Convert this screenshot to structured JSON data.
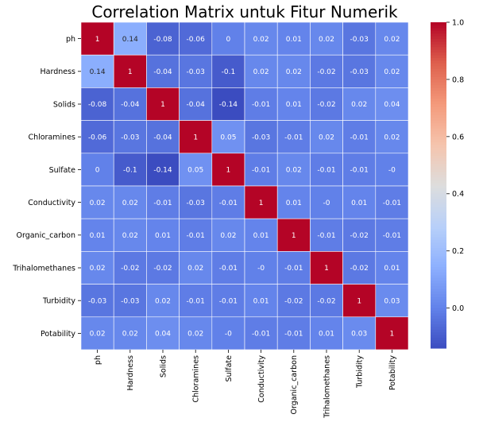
{
  "chart_data": {
    "type": "heatmap",
    "title": "Correlation Matrix untuk Fitur Numerik",
    "xlabel": "",
    "ylabel": "",
    "labels": [
      "ph",
      "Hardness",
      "Solids",
      "Chloramines",
      "Sulfate",
      "Conductivity",
      "Organic_carbon",
      "Trihalomethanes",
      "Turbidity",
      "Potability"
    ],
    "matrix": [
      [
        1,
        0.14,
        -0.08,
        -0.06,
        0,
        0.02,
        0.01,
        0.02,
        -0.03,
        0.02
      ],
      [
        0.14,
        1,
        -0.04,
        -0.03,
        -0.1,
        0.02,
        0.02,
        -0.02,
        -0.03,
        0.02
      ],
      [
        -0.08,
        -0.04,
        1,
        -0.04,
        -0.14,
        -0.01,
        0.01,
        -0.02,
        0.02,
        0.04
      ],
      [
        -0.06,
        -0.03,
        -0.04,
        1,
        0.05,
        -0.03,
        -0.01,
        0.02,
        -0.01,
        0.02
      ],
      [
        0,
        -0.1,
        -0.14,
        0.05,
        1,
        -0.01,
        0.02,
        -0.01,
        -0.01,
        0
      ],
      [
        0.02,
        0.02,
        -0.01,
        -0.03,
        -0.01,
        1,
        0.01,
        0,
        0.01,
        -0.01
      ],
      [
        0.01,
        0.02,
        0.01,
        -0.01,
        0.02,
        0.01,
        1,
        -0.01,
        -0.02,
        -0.01
      ],
      [
        0.02,
        -0.02,
        -0.02,
        0.02,
        -0.01,
        0,
        -0.01,
        1,
        -0.02,
        0.01
      ],
      [
        -0.03,
        -0.03,
        0.02,
        -0.01,
        -0.01,
        0.01,
        -0.02,
        -0.02,
        1,
        0.03
      ],
      [
        0.02,
        0.02,
        0.04,
        0.02,
        0,
        -0.01,
        -0.01,
        0.01,
        0.03,
        1
      ]
    ],
    "cell_text": [
      [
        "1",
        "0.14",
        "-0.08",
        "-0.06",
        "0",
        "0.02",
        "0.01",
        "0.02",
        "-0.03",
        "0.02"
      ],
      [
        "0.14",
        "1",
        "-0.04",
        "-0.03",
        "-0.1",
        "0.02",
        "0.02",
        "-0.02",
        "-0.03",
        "0.02"
      ],
      [
        "-0.08",
        "-0.04",
        "1",
        "-0.04",
        "-0.14",
        "-0.01",
        "0.01",
        "-0.02",
        "0.02",
        "0.04"
      ],
      [
        "-0.06",
        "-0.03",
        "-0.04",
        "1",
        "0.05",
        "-0.03",
        "-0.01",
        "0.02",
        "-0.01",
        "0.02"
      ],
      [
        "0",
        "-0.1",
        "-0.14",
        "0.05",
        "1",
        "-0.01",
        "0.02",
        "-0.01",
        "-0.01",
        "-0"
      ],
      [
        "0.02",
        "0.02",
        "-0.01",
        "-0.03",
        "-0.01",
        "1",
        "0.01",
        "-0",
        "0.01",
        "-0.01"
      ],
      [
        "0.01",
        "0.02",
        "0.01",
        "-0.01",
        "0.02",
        "0.01",
        "1",
        "-0.01",
        "-0.02",
        "-0.01"
      ],
      [
        "0.02",
        "-0.02",
        "-0.02",
        "0.02",
        "-0.01",
        "-0",
        "-0.01",
        "1",
        "-0.02",
        "0.01"
      ],
      [
        "-0.03",
        "-0.03",
        "0.02",
        "-0.01",
        "-0.01",
        "0.01",
        "-0.02",
        "-0.02",
        "1",
        "0.03"
      ],
      [
        "0.02",
        "0.02",
        "0.04",
        "0.02",
        "-0",
        "-0.01",
        "-0.01",
        "0.01",
        "0.03",
        "1"
      ]
    ],
    "colormap": "coolwarm",
    "vmin": -0.14,
    "vmax": 1.0,
    "colorbar": {
      "ticks": [
        0.0,
        0.2,
        0.4,
        0.6,
        0.8,
        1.0
      ],
      "tick_labels": [
        "0.0",
        "0.2",
        "0.4",
        "0.6",
        "0.8",
        "1.0"
      ]
    },
    "grid": false,
    "legend": "colorbar-right"
  }
}
